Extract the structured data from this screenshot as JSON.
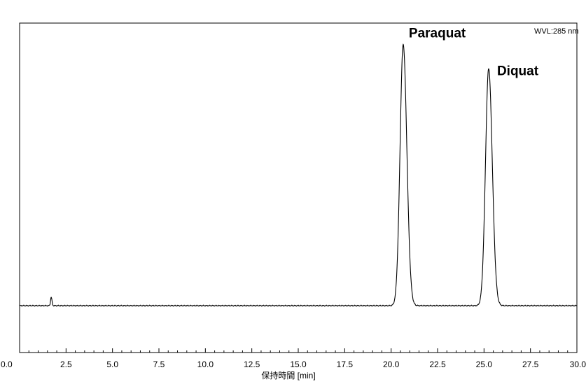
{
  "chart_data": {
    "type": "line",
    "xlabel": "保持時間 [min]",
    "xlim": [
      0.0,
      30.0
    ],
    "x_ticks": [
      "0.0",
      "2.5",
      "5.0",
      "7.5",
      "10.0",
      "12.5",
      "15.0",
      "17.5",
      "20.0",
      "22.5",
      "25.0",
      "27.5",
      "30.0"
    ],
    "y_ticks_labeled": false,
    "ylim": [
      0,
      100
    ],
    "grid": false,
    "detector_label": "WVL:285 nm",
    "baseline": 0,
    "peaks": [
      {
        "name": "Paraquat",
        "retention_time": 20.65,
        "height": 92.5
      },
      {
        "name": "Diquat",
        "retention_time": 25.25,
        "height": 84.0
      }
    ],
    "minor_peaks": [
      {
        "retention_time": 1.7,
        "height": 3.0
      }
    ]
  }
}
